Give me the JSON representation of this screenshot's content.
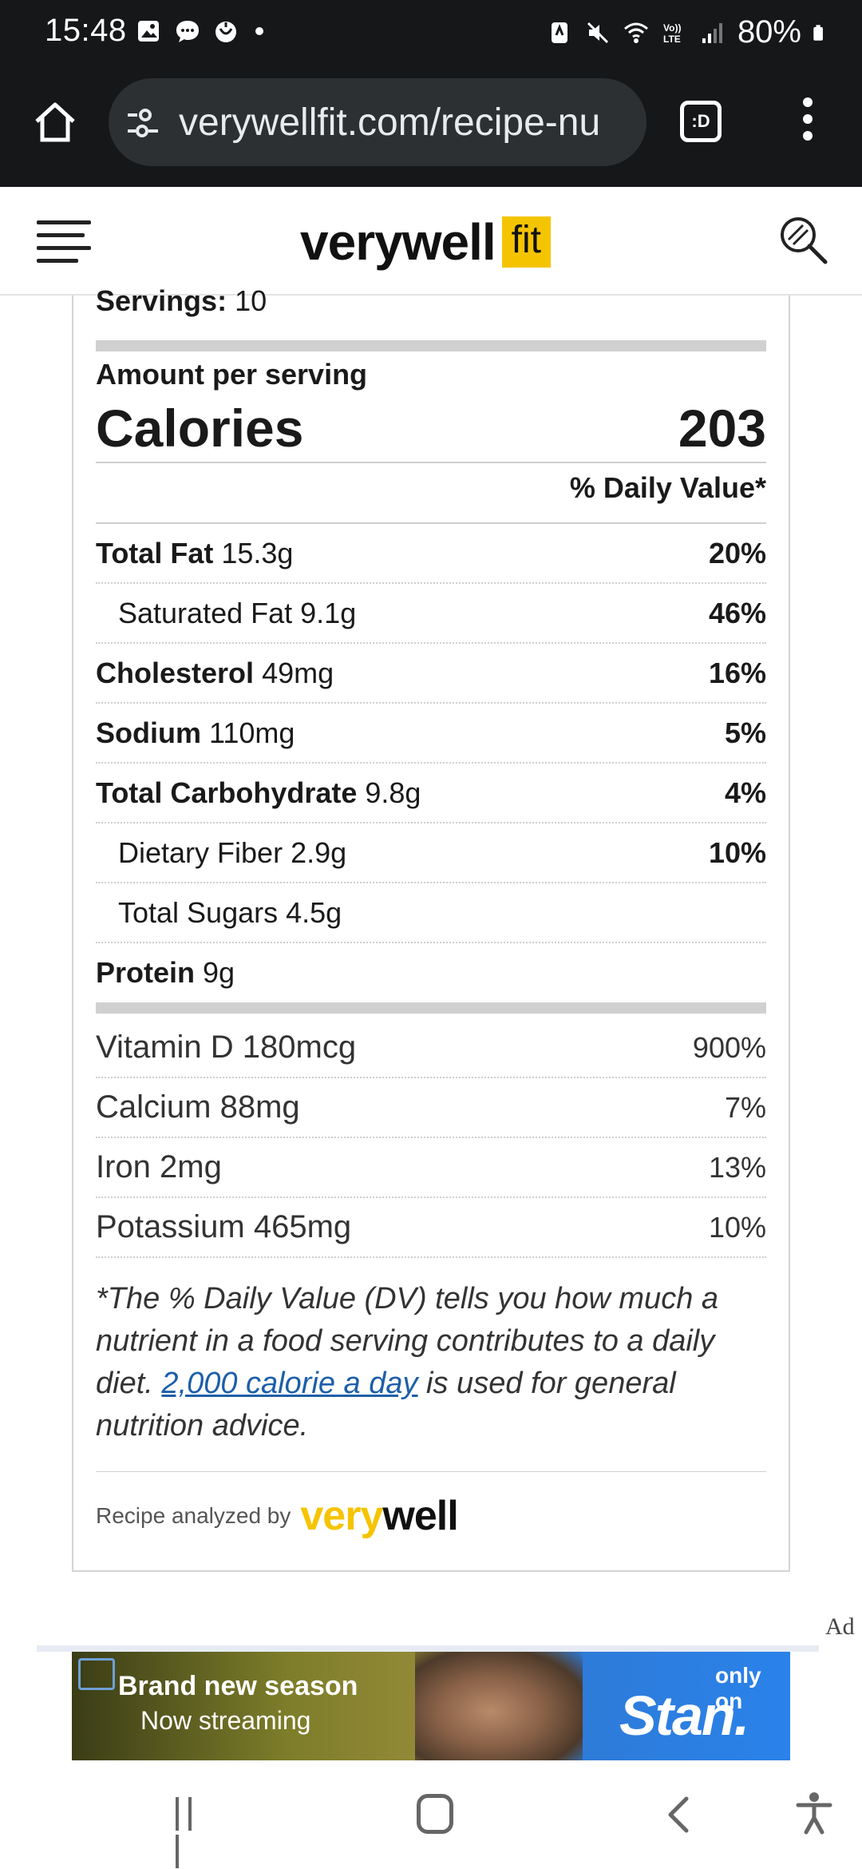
{
  "status_bar": {
    "time": "15:48",
    "battery": "80%",
    "left_icons": [
      "gallery-icon",
      "chat-bubble-icon",
      "woolworths-icon",
      "notification-dot"
    ],
    "right_icons": [
      "nfc-icon",
      "mute-icon",
      "wifi-icon",
      "volte-icon",
      "signal-icon",
      "battery-icon"
    ]
  },
  "browser": {
    "url": "verywellfit.com/recipe-nu",
    "tabs_label": ":D"
  },
  "site": {
    "logo_word": "verywell",
    "logo_badge": "fit"
  },
  "nutrition": {
    "servings_label": "Servings:",
    "servings_value": "10",
    "amount_label": "Amount per serving",
    "calories_label": "Calories",
    "calories_value": "203",
    "dv_header": "% Daily Value*",
    "nutrients": [
      {
        "name": "Total Fat",
        "amount": "15.3g",
        "dv": "20%"
      },
      {
        "name": "Saturated Fat",
        "amount": "9.1g",
        "dv": "46%"
      },
      {
        "name": "Cholesterol",
        "amount": "49mg",
        "dv": "16%"
      },
      {
        "name": "Sodium",
        "amount": "110mg",
        "dv": "5%"
      },
      {
        "name": "Total Carbohydrate",
        "amount": "9.8g",
        "dv": "4%"
      },
      {
        "name": "Dietary Fiber",
        "amount": "2.9g",
        "dv": "10%"
      },
      {
        "name": "Total Sugars",
        "amount": "4.5g",
        "dv": ""
      },
      {
        "name": "Protein",
        "amount": "9g",
        "dv": ""
      }
    ],
    "vitamins": [
      {
        "label": "Vitamin D 180mcg",
        "dv": "900%"
      },
      {
        "label": "Calcium 88mg",
        "dv": "7%"
      },
      {
        "label": "Iron 2mg",
        "dv": "13%"
      },
      {
        "label": "Potassium 465mg",
        "dv": "10%"
      }
    ],
    "footnote_pre": "*The % Daily Value (DV) tells you how much a nutrient in a food serving contributes to a daily diet. ",
    "footnote_link": "2,000 calorie a day",
    "footnote_post": " is used for general nutrition advice.",
    "analyzed_by": "Recipe analyzed by",
    "analyzed_logo_a": "very",
    "analyzed_logo_b": "well"
  },
  "ad": {
    "label": "Ad",
    "line1": "Brand new season",
    "line2": "Now streaming",
    "only_on": "only on",
    "brand": "Stan."
  }
}
